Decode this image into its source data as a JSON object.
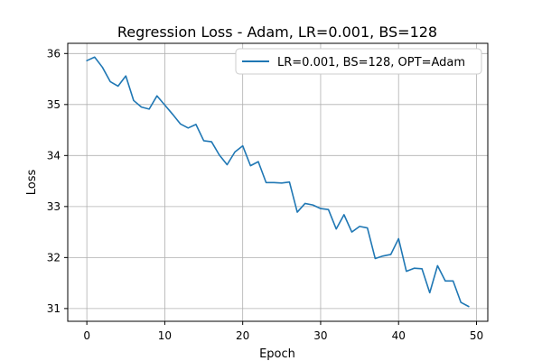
{
  "chart_data": {
    "type": "line",
    "title": "Regression Loss - Adam, LR=0.001, BS=128",
    "xlabel": "Epoch",
    "ylabel": "Loss",
    "xlim": [
      -2.45,
      51.45
    ],
    "ylim": [
      30.75,
      36.2
    ],
    "xticks": [
      0,
      10,
      20,
      30,
      40,
      50
    ],
    "yticks": [
      31,
      32,
      33,
      34,
      35,
      36
    ],
    "grid": true,
    "legend_position": "upper-right",
    "series": [
      {
        "name": "LR=0.001, BS=128, OPT=Adam",
        "color": "#1f77b4",
        "x": [
          0,
          1,
          2,
          3,
          4,
          5,
          6,
          7,
          8,
          9,
          10,
          11,
          12,
          13,
          14,
          15,
          16,
          17,
          18,
          19,
          20,
          21,
          22,
          23,
          24,
          25,
          26,
          27,
          28,
          29,
          30,
          31,
          32,
          33,
          34,
          35,
          36,
          37,
          38,
          39,
          40,
          41,
          42,
          43,
          44,
          45,
          46,
          47,
          48,
          49
        ],
        "y": [
          35.86,
          35.93,
          35.73,
          35.45,
          35.36,
          35.56,
          35.08,
          34.95,
          34.91,
          35.17,
          34.99,
          34.81,
          34.62,
          34.54,
          34.61,
          34.29,
          34.27,
          34.01,
          33.82,
          34.07,
          34.19,
          33.8,
          33.88,
          33.47,
          33.47,
          33.46,
          33.48,
          32.89,
          33.06,
          33.03,
          32.96,
          32.94,
          32.56,
          32.84,
          32.5,
          32.61,
          32.58,
          31.98,
          32.03,
          32.06,
          32.37,
          31.73,
          31.79,
          31.78,
          31.31,
          31.84,
          31.54,
          31.54,
          31.12,
          31.04
        ]
      }
    ]
  }
}
